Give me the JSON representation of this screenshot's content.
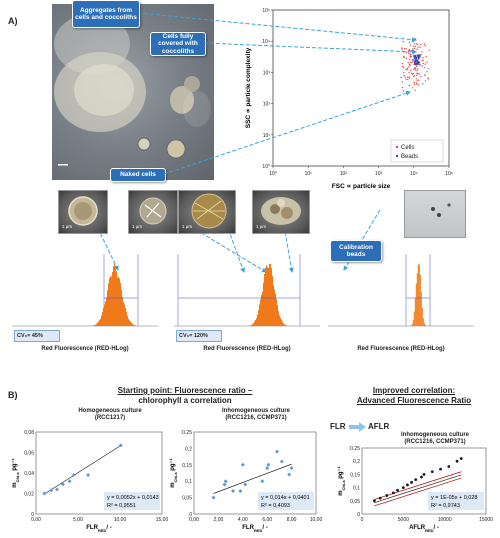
{
  "panel_a_label": "A)",
  "panel_b_label": "B)",
  "callouts": {
    "aggregates": "Aggregates from cells and coccoliths",
    "covered": "Cells fully covered with coccoliths",
    "naked": "Naked cells",
    "beads": "Calibration beads"
  },
  "scatter": {
    "ylabel": "SSC ∝ particle complexity",
    "xlabel": "FSC ∝ particle size",
    "legend": [
      "Cells",
      "Beads"
    ],
    "x_ticks": [
      "10⁰",
      "10¹",
      "10²",
      "10³",
      "10⁴",
      "10⁵"
    ],
    "y_ticks": [
      "10⁰",
      "10¹",
      "10²",
      "10³",
      "10⁴",
      "10⁵"
    ]
  },
  "histograms": {
    "xlabel": "Red Fluorescence (RED-HLog)",
    "cv1": "CV₀= 45%",
    "cv2": "CV₀= 120%",
    "cv_sub": "B"
  },
  "scale_bars": [
    "1 µm",
    "1 µm",
    "1 µm",
    "1 µm"
  ],
  "section_b": {
    "left_title": "Starting point: Fluorescence ratio –",
    "left_sub": "chlorophyll a correlation",
    "right_title": "Improved correlation:",
    "right_sub": "Advanced Fluorescence Ratio",
    "flr": "FLR",
    "aflr": "AFLR",
    "ylabel": "m",
    "ylabel_sub": "Chl-a",
    "ylabel_unit": " pg⁻¹"
  },
  "chart_data": [
    {
      "type": "scatter",
      "title": "Homogeneous culture",
      "subtitle": "(RCC1217)",
      "xlabel": "FLR",
      "xlabel_sub": "RED",
      "xlabel_unit": "/ -",
      "xlim": [
        0,
        15
      ],
      "ylim": [
        0,
        0.08
      ],
      "x_ticks": [
        "0,00",
        "5,00",
        "10,00",
        "15,00"
      ],
      "y_ticks": [
        "0",
        "0,02",
        "0,04",
        "0,06",
        "0,08"
      ],
      "points": [
        [
          1.0,
          0.02
        ],
        [
          1.8,
          0.023
        ],
        [
          2.5,
          0.024
        ],
        [
          3.2,
          0.029
        ],
        [
          4.0,
          0.032
        ],
        [
          4.5,
          0.038
        ],
        [
          6.2,
          0.038
        ],
        [
          10.1,
          0.067
        ]
      ],
      "trend": {
        "slope": 0.0052,
        "intercept": 0.0143
      },
      "equation": "y = 0,0052x + 0,0143",
      "r2": "R² = 0,9551"
    },
    {
      "type": "scatter",
      "title": "Inhomogeneous culture",
      "subtitle": "(RCC1216, CCMP371)",
      "xlabel": "FLR",
      "xlabel_sub": "RED",
      "xlabel_unit": "/ -",
      "xlim": [
        0,
        10
      ],
      "ylim": [
        0,
        0.25
      ],
      "x_ticks": [
        "0,00",
        "2,00",
        "4,00",
        "6,00",
        "8,00",
        "10,00"
      ],
      "y_ticks": [
        "0",
        "0,05",
        "0,1",
        "0,15",
        "0,2",
        "0,25"
      ],
      "points": [
        [
          1.6,
          0.05
        ],
        [
          2.5,
          0.09
        ],
        [
          2.6,
          0.1
        ],
        [
          3.2,
          0.07
        ],
        [
          3.8,
          0.07
        ],
        [
          4.0,
          0.15
        ],
        [
          4.2,
          0.09
        ],
        [
          5.6,
          0.1
        ],
        [
          6.0,
          0.14
        ],
        [
          6.1,
          0.15
        ],
        [
          6.8,
          0.19
        ],
        [
          7.2,
          0.16
        ],
        [
          7.8,
          0.12
        ],
        [
          8.0,
          0.14
        ]
      ],
      "trend": {
        "slope": 0.014,
        "intercept": 0.0401
      },
      "equation": "y = 0,014x + 0,0401",
      "r2": "R² = 0,4093"
    },
    {
      "type": "scatter",
      "title": "Inhomogeneous culture",
      "subtitle": "(RCC1216, CCMP371)",
      "xlabel": "AFLR",
      "xlabel_sub": "RED",
      "xlabel_unit": "/ -",
      "xlim": [
        0,
        15000
      ],
      "ylim": [
        0,
        0.25
      ],
      "x_ticks": [
        "0",
        "5000",
        "10000",
        "15000"
      ],
      "y_ticks": [
        "0",
        "0,05",
        "0,1",
        "0,15",
        "0,2",
        "0,25"
      ],
      "points": [
        [
          1500,
          0.05
        ],
        [
          2200,
          0.06
        ],
        [
          3000,
          0.07
        ],
        [
          3800,
          0.08
        ],
        [
          4300,
          0.09
        ],
        [
          5000,
          0.1
        ],
        [
          5500,
          0.11
        ],
        [
          6000,
          0.12
        ],
        [
          6500,
          0.13
        ],
        [
          7200,
          0.14
        ],
        [
          7500,
          0.15
        ],
        [
          8500,
          0.16
        ],
        [
          9500,
          0.17
        ],
        [
          10500,
          0.18
        ],
        [
          11500,
          0.2
        ],
        [
          12000,
          0.21
        ]
      ],
      "trend": {
        "slope": 1e-05,
        "intercept": 0.028
      },
      "equation": "y = 1E-05x + 0,028",
      "r2": "R² = 0,9743"
    }
  ]
}
